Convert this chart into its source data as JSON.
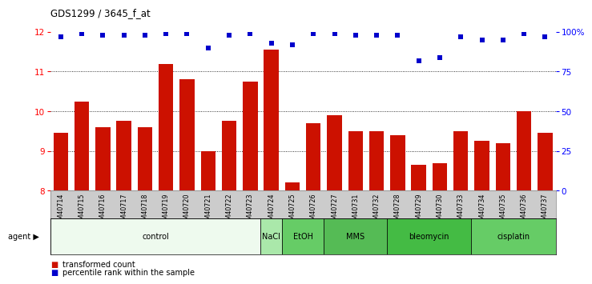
{
  "title": "GDS1299 / 3645_f_at",
  "samples": [
    "GSM40714",
    "GSM40715",
    "GSM40716",
    "GSM40717",
    "GSM40718",
    "GSM40719",
    "GSM40720",
    "GSM40721",
    "GSM40722",
    "GSM40723",
    "GSM40724",
    "GSM40725",
    "GSM40726",
    "GSM40727",
    "GSM40731",
    "GSM40732",
    "GSM40728",
    "GSM40729",
    "GSM40730",
    "GSM40733",
    "GSM40734",
    "GSM40735",
    "GSM40736",
    "GSM40737"
  ],
  "bar_values": [
    9.45,
    10.25,
    9.6,
    9.75,
    9.6,
    11.2,
    10.8,
    9.0,
    9.75,
    10.75,
    11.55,
    8.2,
    9.7,
    9.9,
    9.5,
    9.5,
    9.4,
    8.65,
    8.7,
    9.5,
    9.25,
    9.2,
    10.0,
    9.45
  ],
  "percentile_values": [
    97,
    99,
    98,
    98,
    98,
    99,
    99,
    90,
    98,
    99,
    93,
    92,
    99,
    99,
    98,
    98,
    98,
    82,
    84,
    97,
    95,
    95,
    99,
    97
  ],
  "bar_color": "#cc1100",
  "dot_color": "#0000cc",
  "ylim_left": [
    8,
    12
  ],
  "ylim_right": [
    0,
    100
  ],
  "yticks_left": [
    8,
    9,
    10,
    11,
    12
  ],
  "yticks_right": [
    0,
    25,
    50,
    75,
    100
  ],
  "ytick_labels_right": [
    "0",
    "25",
    "50",
    "75",
    "100%"
  ],
  "agents": [
    {
      "label": "control",
      "start": 0,
      "end": 10,
      "color": "#eefaee"
    },
    {
      "label": "NaCl",
      "start": 10,
      "end": 11,
      "color": "#aae8aa"
    },
    {
      "label": "EtOH",
      "start": 11,
      "end": 13,
      "color": "#66cc66"
    },
    {
      "label": "MMS",
      "start": 13,
      "end": 16,
      "color": "#55bb55"
    },
    {
      "label": "bleomycin",
      "start": 16,
      "end": 20,
      "color": "#44bb44"
    },
    {
      "label": "cisplatin",
      "start": 20,
      "end": 24,
      "color": "#66cc66"
    }
  ],
  "legend_labels": [
    "transformed count",
    "percentile rank within the sample"
  ],
  "legend_colors": [
    "#cc1100",
    "#0000cc"
  ],
  "bg_color": "#ffffff",
  "tick_area_color": "#cccccc"
}
